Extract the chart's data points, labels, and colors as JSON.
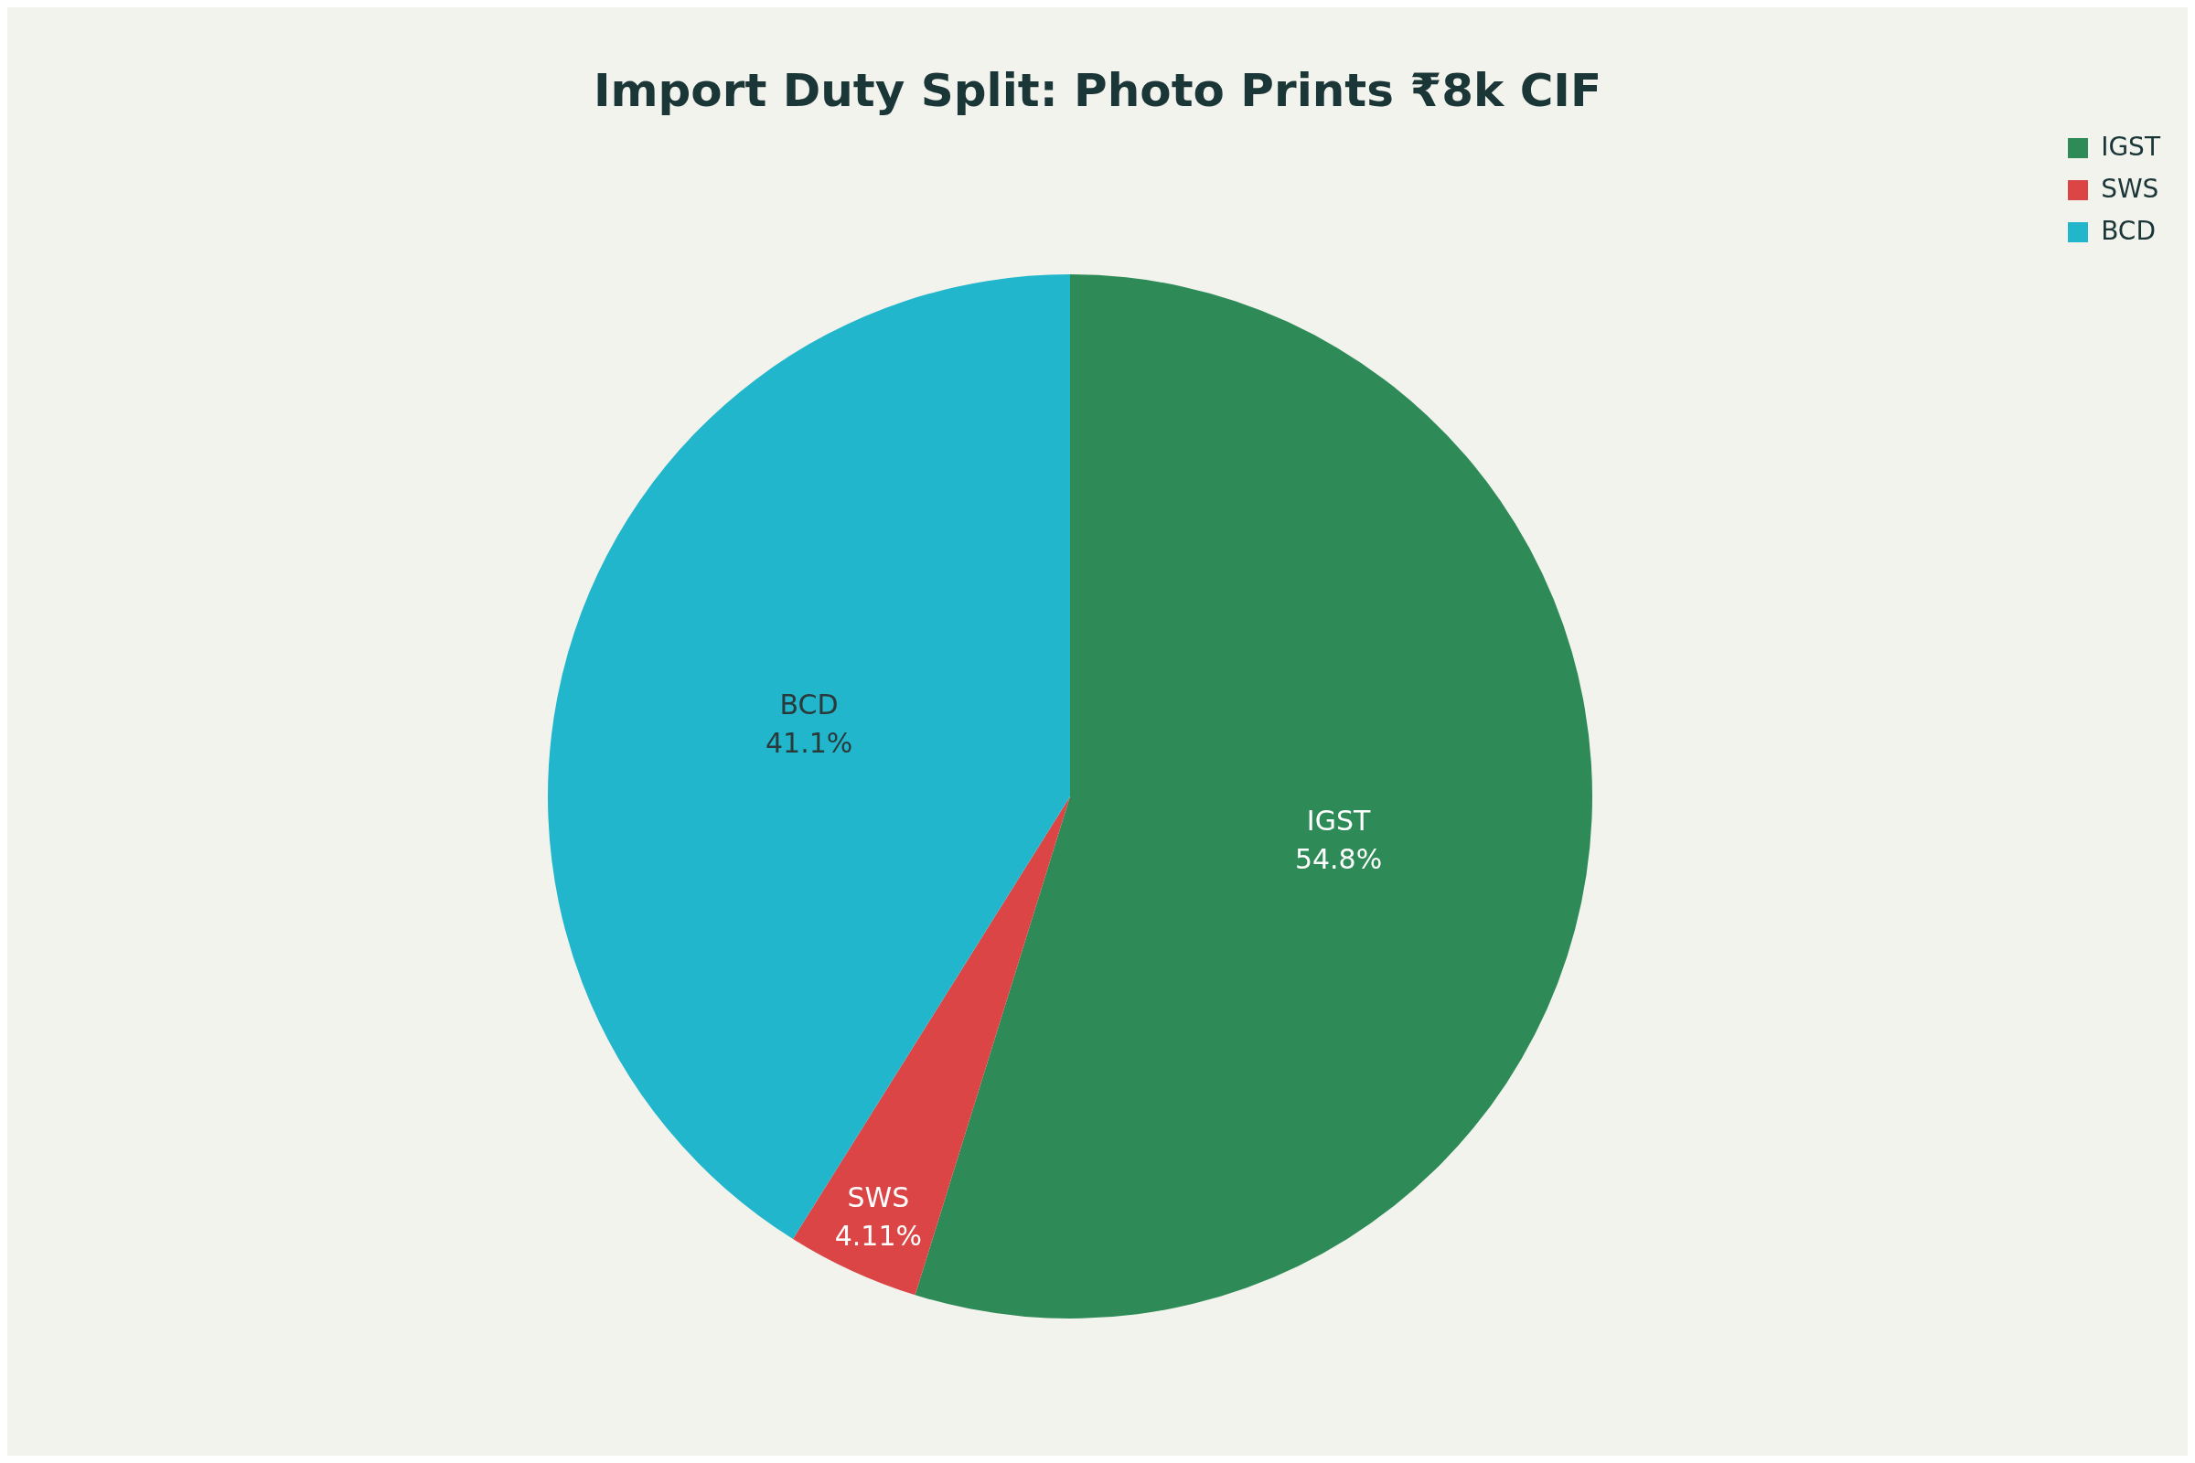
{
  "chart_data": {
    "type": "pie",
    "title": "Import Duty Split: Photo Prints ₹8k CIF",
    "categories": [
      "IGST",
      "SWS",
      "BCD"
    ],
    "values": [
      54.8,
      4.11,
      41.1
    ],
    "value_labels": [
      "54.8%",
      "4.11%",
      "41.1%"
    ],
    "colors": [
      "#2e8b57",
      "#db4545",
      "#21b6cb"
    ],
    "legend": "top right"
  }
}
